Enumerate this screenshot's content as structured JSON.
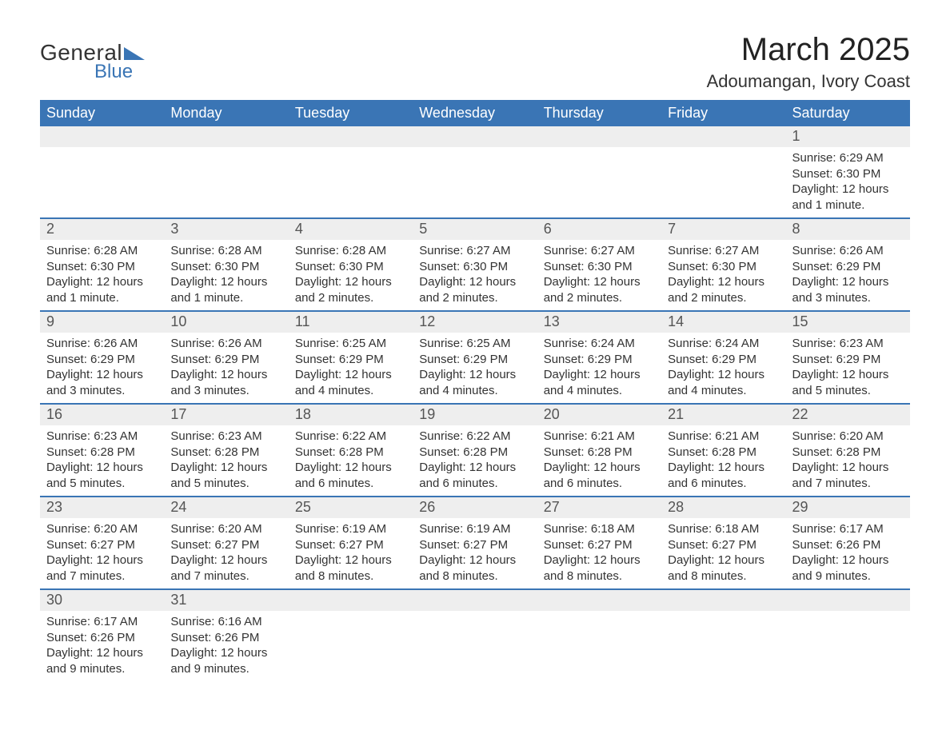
{
  "logo": {
    "general": "General",
    "blue": "Blue",
    "tri_color": "#3a75b5"
  },
  "title": "March 2025",
  "location": "Adoumangan, Ivory Coast",
  "header_bg": "#3a75b5",
  "header_fg": "#ffffff",
  "daynum_bg": "#eeeeee",
  "border_color": "#3a75b5",
  "text_color": "#333333",
  "day_headers": [
    "Sunday",
    "Monday",
    "Tuesday",
    "Wednesday",
    "Thursday",
    "Friday",
    "Saturday"
  ],
  "weeks": [
    [
      null,
      null,
      null,
      null,
      null,
      null,
      {
        "n": "1",
        "sr": "Sunrise: 6:29 AM",
        "ss": "Sunset: 6:30 PM",
        "dl1": "Daylight: 12 hours",
        "dl2": "and 1 minute."
      }
    ],
    [
      {
        "n": "2",
        "sr": "Sunrise: 6:28 AM",
        "ss": "Sunset: 6:30 PM",
        "dl1": "Daylight: 12 hours",
        "dl2": "and 1 minute."
      },
      {
        "n": "3",
        "sr": "Sunrise: 6:28 AM",
        "ss": "Sunset: 6:30 PM",
        "dl1": "Daylight: 12 hours",
        "dl2": "and 1 minute."
      },
      {
        "n": "4",
        "sr": "Sunrise: 6:28 AM",
        "ss": "Sunset: 6:30 PM",
        "dl1": "Daylight: 12 hours",
        "dl2": "and 2 minutes."
      },
      {
        "n": "5",
        "sr": "Sunrise: 6:27 AM",
        "ss": "Sunset: 6:30 PM",
        "dl1": "Daylight: 12 hours",
        "dl2": "and 2 minutes."
      },
      {
        "n": "6",
        "sr": "Sunrise: 6:27 AM",
        "ss": "Sunset: 6:30 PM",
        "dl1": "Daylight: 12 hours",
        "dl2": "and 2 minutes."
      },
      {
        "n": "7",
        "sr": "Sunrise: 6:27 AM",
        "ss": "Sunset: 6:30 PM",
        "dl1": "Daylight: 12 hours",
        "dl2": "and 2 minutes."
      },
      {
        "n": "8",
        "sr": "Sunrise: 6:26 AM",
        "ss": "Sunset: 6:29 PM",
        "dl1": "Daylight: 12 hours",
        "dl2": "and 3 minutes."
      }
    ],
    [
      {
        "n": "9",
        "sr": "Sunrise: 6:26 AM",
        "ss": "Sunset: 6:29 PM",
        "dl1": "Daylight: 12 hours",
        "dl2": "and 3 minutes."
      },
      {
        "n": "10",
        "sr": "Sunrise: 6:26 AM",
        "ss": "Sunset: 6:29 PM",
        "dl1": "Daylight: 12 hours",
        "dl2": "and 3 minutes."
      },
      {
        "n": "11",
        "sr": "Sunrise: 6:25 AM",
        "ss": "Sunset: 6:29 PM",
        "dl1": "Daylight: 12 hours",
        "dl2": "and 4 minutes."
      },
      {
        "n": "12",
        "sr": "Sunrise: 6:25 AM",
        "ss": "Sunset: 6:29 PM",
        "dl1": "Daylight: 12 hours",
        "dl2": "and 4 minutes."
      },
      {
        "n": "13",
        "sr": "Sunrise: 6:24 AM",
        "ss": "Sunset: 6:29 PM",
        "dl1": "Daylight: 12 hours",
        "dl2": "and 4 minutes."
      },
      {
        "n": "14",
        "sr": "Sunrise: 6:24 AM",
        "ss": "Sunset: 6:29 PM",
        "dl1": "Daylight: 12 hours",
        "dl2": "and 4 minutes."
      },
      {
        "n": "15",
        "sr": "Sunrise: 6:23 AM",
        "ss": "Sunset: 6:29 PM",
        "dl1": "Daylight: 12 hours",
        "dl2": "and 5 minutes."
      }
    ],
    [
      {
        "n": "16",
        "sr": "Sunrise: 6:23 AM",
        "ss": "Sunset: 6:28 PM",
        "dl1": "Daylight: 12 hours",
        "dl2": "and 5 minutes."
      },
      {
        "n": "17",
        "sr": "Sunrise: 6:23 AM",
        "ss": "Sunset: 6:28 PM",
        "dl1": "Daylight: 12 hours",
        "dl2": "and 5 minutes."
      },
      {
        "n": "18",
        "sr": "Sunrise: 6:22 AM",
        "ss": "Sunset: 6:28 PM",
        "dl1": "Daylight: 12 hours",
        "dl2": "and 6 minutes."
      },
      {
        "n": "19",
        "sr": "Sunrise: 6:22 AM",
        "ss": "Sunset: 6:28 PM",
        "dl1": "Daylight: 12 hours",
        "dl2": "and 6 minutes."
      },
      {
        "n": "20",
        "sr": "Sunrise: 6:21 AM",
        "ss": "Sunset: 6:28 PM",
        "dl1": "Daylight: 12 hours",
        "dl2": "and 6 minutes."
      },
      {
        "n": "21",
        "sr": "Sunrise: 6:21 AM",
        "ss": "Sunset: 6:28 PM",
        "dl1": "Daylight: 12 hours",
        "dl2": "and 6 minutes."
      },
      {
        "n": "22",
        "sr": "Sunrise: 6:20 AM",
        "ss": "Sunset: 6:28 PM",
        "dl1": "Daylight: 12 hours",
        "dl2": "and 7 minutes."
      }
    ],
    [
      {
        "n": "23",
        "sr": "Sunrise: 6:20 AM",
        "ss": "Sunset: 6:27 PM",
        "dl1": "Daylight: 12 hours",
        "dl2": "and 7 minutes."
      },
      {
        "n": "24",
        "sr": "Sunrise: 6:20 AM",
        "ss": "Sunset: 6:27 PM",
        "dl1": "Daylight: 12 hours",
        "dl2": "and 7 minutes."
      },
      {
        "n": "25",
        "sr": "Sunrise: 6:19 AM",
        "ss": "Sunset: 6:27 PM",
        "dl1": "Daylight: 12 hours",
        "dl2": "and 8 minutes."
      },
      {
        "n": "26",
        "sr": "Sunrise: 6:19 AM",
        "ss": "Sunset: 6:27 PM",
        "dl1": "Daylight: 12 hours",
        "dl2": "and 8 minutes."
      },
      {
        "n": "27",
        "sr": "Sunrise: 6:18 AM",
        "ss": "Sunset: 6:27 PM",
        "dl1": "Daylight: 12 hours",
        "dl2": "and 8 minutes."
      },
      {
        "n": "28",
        "sr": "Sunrise: 6:18 AM",
        "ss": "Sunset: 6:27 PM",
        "dl1": "Daylight: 12 hours",
        "dl2": "and 8 minutes."
      },
      {
        "n": "29",
        "sr": "Sunrise: 6:17 AM",
        "ss": "Sunset: 6:26 PM",
        "dl1": "Daylight: 12 hours",
        "dl2": "and 9 minutes."
      }
    ],
    [
      {
        "n": "30",
        "sr": "Sunrise: 6:17 AM",
        "ss": "Sunset: 6:26 PM",
        "dl1": "Daylight: 12 hours",
        "dl2": "and 9 minutes."
      },
      {
        "n": "31",
        "sr": "Sunrise: 6:16 AM",
        "ss": "Sunset: 6:26 PM",
        "dl1": "Daylight: 12 hours",
        "dl2": "and 9 minutes."
      },
      null,
      null,
      null,
      null,
      null
    ]
  ]
}
